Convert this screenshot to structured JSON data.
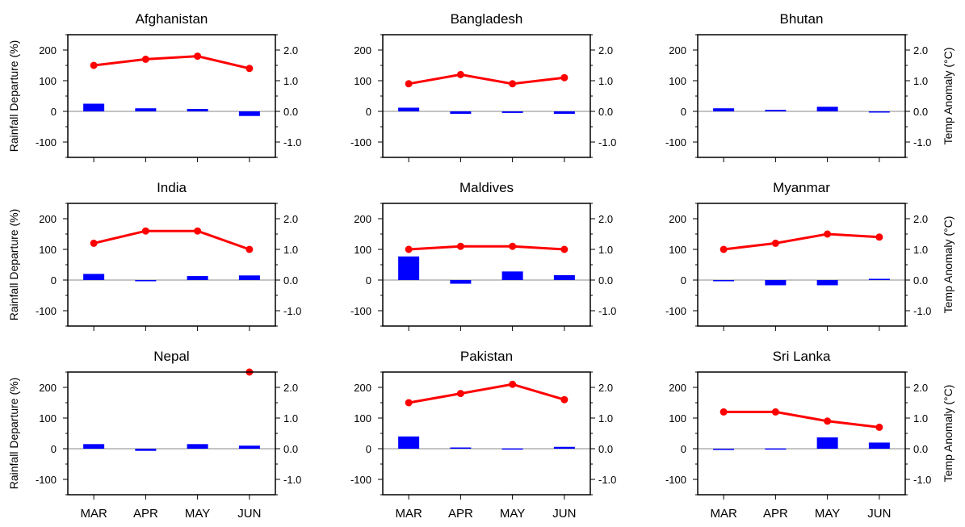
{
  "chart_data": {
    "type": "bar",
    "categories": [
      "MAR",
      "APR",
      "MAY",
      "JUN"
    ],
    "ylabel": "Rainfall Departure (%)",
    "y2label": "Temp Anomaly (°C)",
    "ylim": [
      -150,
      250
    ],
    "y2lim": [
      -1.5,
      2.5
    ],
    "yticks": [
      "200",
      "100",
      "0",
      "-100"
    ],
    "y2ticks": [
      "2.0",
      "1.0",
      "0.0",
      "-1.0"
    ],
    "bar_color": "#0000ff",
    "line_color": "#ff0000",
    "panels": [
      {
        "title": "Afghanistan",
        "rainfall": [
          25,
          10,
          8,
          -15
        ],
        "temp": [
          1.5,
          1.7,
          1.8,
          1.4
        ]
      },
      {
        "title": "Bangladesh",
        "rainfall": [
          12,
          -8,
          -5,
          -8
        ],
        "temp": [
          0.9,
          1.2,
          0.9,
          1.1
        ]
      },
      {
        "title": "Bhutan",
        "rainfall": [
          10,
          5,
          15,
          -2
        ],
        "temp": [
          null,
          null,
          null,
          null
        ]
      },
      {
        "title": "India",
        "rainfall": [
          20,
          -2,
          13,
          15
        ],
        "temp": [
          1.2,
          1.6,
          1.6,
          1.0
        ]
      },
      {
        "title": "Maldives",
        "rainfall": [
          77,
          -12,
          28,
          16
        ],
        "temp": [
          1.0,
          1.1,
          1.1,
          1.0
        ]
      },
      {
        "title": "Myanmar",
        "rainfall": [
          -2,
          -17,
          -17,
          4
        ],
        "temp": [
          1.0,
          1.2,
          1.5,
          1.4
        ]
      },
      {
        "title": "Nepal",
        "rainfall": [
          15,
          -7,
          15,
          10
        ],
        "temp": [
          null,
          null,
          null,
          2.5
        ]
      },
      {
        "title": "Pakistan",
        "rainfall": [
          40,
          4,
          1,
          6
        ],
        "temp": [
          1.5,
          1.8,
          2.1,
          1.6
        ]
      },
      {
        "title": "Sri Lanka",
        "rainfall": [
          -2,
          1,
          37,
          20
        ],
        "temp": [
          1.2,
          1.2,
          0.9,
          0.7
        ]
      }
    ]
  }
}
